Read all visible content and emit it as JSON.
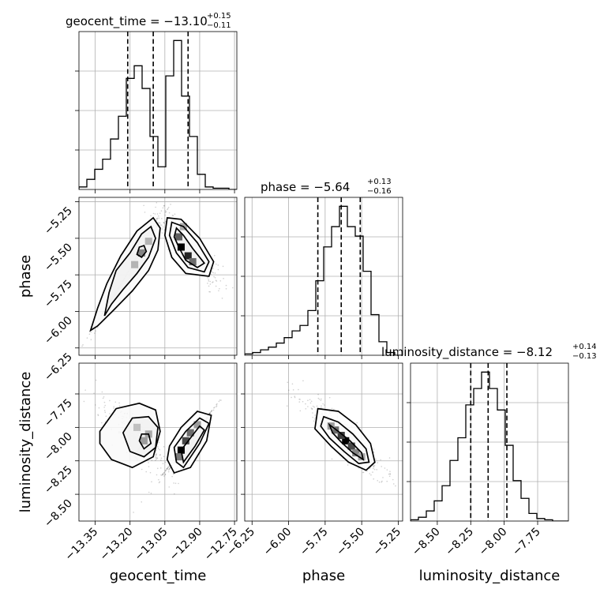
{
  "chart_data": {
    "type": "corner",
    "parameters": [
      "geocent_time",
      "phase",
      "luminosity_distance"
    ],
    "titles": [
      {
        "name": "geocent_time",
        "median": "−13.10",
        "plus": "+0.15",
        "minus": "−0.11"
      },
      {
        "name": "phase",
        "median": "−5.64",
        "plus": "+0.13",
        "minus": "−0.16"
      },
      {
        "name": "luminosity_distance",
        "median": "−8.12",
        "plus": "+0.14",
        "minus": "−0.13"
      }
    ],
    "ranges": [
      [
        -13.42,
        -12.74
      ],
      [
        -6.3,
        -5.22
      ],
      [
        -8.7,
        -7.52
      ]
    ],
    "ticks": {
      "geocent_time": [
        "−13.35",
        "−13.20",
        "−13.05",
        "−12.90",
        "−12.75"
      ],
      "phase": [
        "−6.25",
        "−6.00",
        "−5.75",
        "−5.50",
        "−5.25"
      ],
      "luminosity_distance": [
        "−8.50",
        "−8.25",
        "−8.00",
        "−7.75"
      ]
    },
    "tick_values": {
      "geocent_time": [
        -13.35,
        -13.2,
        -13.05,
        -12.9,
        -12.75
      ],
      "phase": [
        -6.25,
        -6.0,
        -5.75,
        -5.5,
        -5.25
      ],
      "luminosity_distance": [
        -8.5,
        -8.25,
        -8.0,
        -7.75
      ]
    },
    "quantiles": {
      "geocent_time": [
        -13.21,
        -13.1,
        -12.95
      ],
      "phase": [
        -5.8,
        -5.64,
        -5.51
      ],
      "luminosity_distance": [
        -8.25,
        -8.12,
        -7.98
      ]
    },
    "histograms": {
      "geocent_time": {
        "edges": [
          -13.42,
          -13.386,
          -13.352,
          -13.318,
          -13.284,
          -13.25,
          -13.216,
          -13.182,
          -13.148,
          -13.114,
          -13.08,
          -13.046,
          -13.012,
          -12.978,
          -12.944,
          -12.91,
          -12.876,
          -12.842,
          -12.808,
          -12.774,
          -12.74
        ],
        "counts": [
          2,
          8,
          16,
          24,
          40,
          58,
          88,
          98,
          80,
          42,
          18,
          90,
          118,
          74,
          42,
          12,
          2,
          1,
          1,
          0
        ]
      },
      "phase": {
        "edges": [
          -6.3,
          -6.246,
          -6.192,
          -6.138,
          -6.084,
          -6.03,
          -5.976,
          -5.922,
          -5.868,
          -5.814,
          -5.76,
          -5.706,
          -5.652,
          -5.598,
          -5.544,
          -5.49,
          -5.436,
          -5.382,
          -5.328,
          -5.274,
          -5.22
        ],
        "counts": [
          1,
          2,
          4,
          6,
          9,
          13,
          18,
          22,
          33,
          55,
          80,
          95,
          110,
          95,
          88,
          62,
          30,
          10,
          2,
          0
        ]
      },
      "luminosity_distance": {
        "edges": [
          -8.7,
          -8.641,
          -8.582,
          -8.523,
          -8.464,
          -8.405,
          -8.346,
          -8.287,
          -8.228,
          -8.169,
          -8.11,
          -8.051,
          -7.992,
          -7.933,
          -7.874,
          -7.815,
          -7.756,
          -7.697,
          -7.638,
          -7.579,
          -7.52
        ],
        "counts": [
          1,
          3,
          8,
          16,
          28,
          48,
          66,
          92,
          105,
          118,
          105,
          88,
          60,
          32,
          18,
          6,
          2,
          1,
          0,
          0
        ]
      }
    },
    "contours": {
      "phase_vs_geocent_time": [
        {
          "level": 0.5,
          "polygon": [
            [
              -13.31,
              -6.03
            ],
            [
              -13.29,
              -5.87
            ],
            [
              -13.26,
              -5.72
            ],
            [
              -13.2,
              -5.6
            ],
            [
              -13.15,
              -5.47
            ],
            [
              -13.11,
              -5.42
            ],
            [
              -13.09,
              -5.5
            ],
            [
              -13.12,
              -5.63
            ],
            [
              -13.17,
              -5.74
            ],
            [
              -13.23,
              -5.85
            ],
            [
              -13.28,
              -5.95
            ]
          ]
        },
        {
          "level": 0.8,
          "polygon": [
            [
              -13.37,
              -6.13
            ],
            [
              -13.34,
              -5.98
            ],
            [
              -13.3,
              -5.81
            ],
            [
              -13.24,
              -5.62
            ],
            [
              -13.17,
              -5.45
            ],
            [
              -13.1,
              -5.36
            ],
            [
              -13.07,
              -5.43
            ],
            [
              -13.08,
              -5.58
            ],
            [
              -13.12,
              -5.72
            ],
            [
              -13.19,
              -5.86
            ],
            [
              -13.27,
              -5.99
            ],
            [
              -13.34,
              -6.1
            ]
          ]
        },
        {
          "level": 0.3,
          "polygon": [
            [
              -13.17,
              -5.61
            ],
            [
              -13.16,
              -5.56
            ],
            [
              -13.14,
              -5.55
            ],
            [
              -13.13,
              -5.59
            ],
            [
              -13.15,
              -5.63
            ]
          ]
        },
        {
          "level": 0.5,
          "polygon": [
            [
              -13.0,
              -5.43
            ],
            [
              -12.97,
              -5.48
            ],
            [
              -12.93,
              -5.57
            ],
            [
              -12.88,
              -5.67
            ],
            [
              -12.91,
              -5.7
            ],
            [
              -12.96,
              -5.65
            ],
            [
              -12.99,
              -5.56
            ],
            [
              -13.01,
              -5.49
            ]
          ]
        },
        {
          "level": 0.8,
          "polygon": [
            [
              -13.02,
              -5.39
            ],
            [
              -12.97,
              -5.42
            ],
            [
              -12.91,
              -5.53
            ],
            [
              -12.86,
              -5.66
            ],
            [
              -12.88,
              -5.73
            ],
            [
              -12.95,
              -5.7
            ],
            [
              -13.0,
              -5.6
            ],
            [
              -13.03,
              -5.48
            ]
          ]
        },
        {
          "level": 0.95,
          "polygon": [
            [
              -13.04,
              -5.36
            ],
            [
              -12.98,
              -5.37
            ],
            [
              -12.9,
              -5.5
            ],
            [
              -12.84,
              -5.66
            ],
            [
              -12.86,
              -5.76
            ],
            [
              -12.96,
              -5.74
            ],
            [
              -13.02,
              -5.63
            ],
            [
              -13.05,
              -5.48
            ]
          ]
        }
      ],
      "luminosity_distance_vs_geocent_time": [
        {
          "level": 0.3,
          "polygon": [
            [
              -13.16,
              -8.1
            ],
            [
              -13.15,
              -8.05
            ],
            [
              -13.12,
              -8.05
            ],
            [
              -13.11,
              -8.12
            ],
            [
              -13.14,
              -8.16
            ]
          ]
        },
        {
          "level": 0.5,
          "polygon": [
            [
              -13.23,
              -8.04
            ],
            [
              -13.19,
              -7.93
            ],
            [
              -13.12,
              -7.92
            ],
            [
              -13.08,
              -8.0
            ],
            [
              -13.09,
              -8.15
            ],
            [
              -13.14,
              -8.22
            ],
            [
              -13.2,
              -8.18
            ]
          ]
        },
        {
          "level": 0.8,
          "polygon": [
            [
              -13.33,
              -8.03
            ],
            [
              -13.26,
              -7.86
            ],
            [
              -13.16,
              -7.82
            ],
            [
              -13.09,
              -7.87
            ],
            [
              -13.07,
              -8.03
            ],
            [
              -13.1,
              -8.22
            ],
            [
              -13.19,
              -8.3
            ],
            [
              -13.28,
              -8.24
            ],
            [
              -13.33,
              -8.12
            ]
          ]
        },
        {
          "level": 0.5,
          "polygon": [
            [
              -12.98,
              -8.17
            ],
            [
              -12.94,
              -8.08
            ],
            [
              -12.9,
              -7.99
            ],
            [
              -12.88,
              -8.02
            ],
            [
              -12.92,
              -8.14
            ],
            [
              -12.97,
              -8.26
            ]
          ]
        },
        {
          "level": 0.8,
          "polygon": [
            [
              -13.01,
              -8.15
            ],
            [
              -12.96,
              -8.03
            ],
            [
              -12.9,
              -7.93
            ],
            [
              -12.86,
              -7.97
            ],
            [
              -12.9,
              -8.12
            ],
            [
              -12.97,
              -8.3
            ],
            [
              -13.0,
              -8.26
            ]
          ]
        },
        {
          "level": 0.95,
          "polygon": [
            [
              -13.03,
              -8.14
            ],
            [
              -12.98,
              -8.0
            ],
            [
              -12.91,
              -7.88
            ],
            [
              -12.85,
              -7.91
            ],
            [
              -12.87,
              -8.1
            ],
            [
              -12.94,
              -8.3
            ],
            [
              -13.01,
              -8.34
            ],
            [
              -13.04,
              -8.24
            ]
          ]
        }
      ],
      "luminosity_distance_vs_phase": [
        {
          "level": 0.5,
          "polygon": [
            [
              -5.72,
              -7.98
            ],
            [
              -5.66,
              -8.03
            ],
            [
              -5.58,
              -8.1
            ],
            [
              -5.5,
              -8.19
            ],
            [
              -5.49,
              -8.24
            ],
            [
              -5.56,
              -8.19
            ],
            [
              -5.64,
              -8.11
            ],
            [
              -5.7,
              -8.04
            ]
          ]
        },
        {
          "level": 0.8,
          "polygon": [
            [
              -5.76,
              -7.92
            ],
            [
              -5.66,
              -7.96
            ],
            [
              -5.56,
              -8.05
            ],
            [
              -5.47,
              -8.16
            ],
            [
              -5.45,
              -8.26
            ],
            [
              -5.52,
              -8.27
            ],
            [
              -5.62,
              -8.18
            ],
            [
              -5.72,
              -8.08
            ],
            [
              -5.78,
              -7.99
            ]
          ]
        },
        {
          "level": 0.95,
          "polygon": [
            [
              -5.8,
              -7.86
            ],
            [
              -5.66,
              -7.88
            ],
            [
              -5.54,
              -7.98
            ],
            [
              -5.44,
              -8.12
            ],
            [
              -5.41,
              -8.26
            ],
            [
              -5.47,
              -8.32
            ],
            [
              -5.59,
              -8.26
            ],
            [
              -5.71,
              -8.14
            ],
            [
              -5.82,
              -8.01
            ]
          ]
        }
      ]
    },
    "density_peaks": {
      "phase_vs_geocent_time": [
        [
          -12.98,
          -5.56,
          1.0
        ],
        [
          -12.95,
          -5.62,
          0.85
        ],
        [
          -12.99,
          -5.49,
          0.6
        ],
        [
          -12.93,
          -5.66,
          0.55
        ],
        [
          -13.15,
          -5.6,
          0.45
        ],
        [
          -13.18,
          -5.68,
          0.25
        ],
        [
          -13.12,
          -5.52,
          0.25
        ],
        [
          -12.97,
          -5.42,
          0.3
        ]
      ],
      "luminosity_distance_vs_geocent_time": [
        [
          -12.98,
          -8.17,
          1.0
        ],
        [
          -12.96,
          -8.1,
          0.7
        ],
        [
          -12.94,
          -8.04,
          0.55
        ],
        [
          -12.99,
          -8.22,
          0.5
        ],
        [
          -13.14,
          -8.1,
          0.35
        ],
        [
          -13.12,
          -8.05,
          0.3
        ],
        [
          -13.17,
          -8.0,
          0.2
        ],
        [
          -12.91,
          -7.98,
          0.35
        ]
      ],
      "luminosity_distance_vs_phase": [
        [
          -5.61,
          -8.1,
          1.0
        ],
        [
          -5.64,
          -8.06,
          0.75
        ],
        [
          -5.57,
          -8.14,
          0.7
        ],
        [
          -5.68,
          -8.02,
          0.55
        ],
        [
          -5.54,
          -8.19,
          0.45
        ],
        [
          -5.71,
          -7.99,
          0.35
        ],
        [
          -5.5,
          -8.22,
          0.3
        ]
      ]
    }
  }
}
